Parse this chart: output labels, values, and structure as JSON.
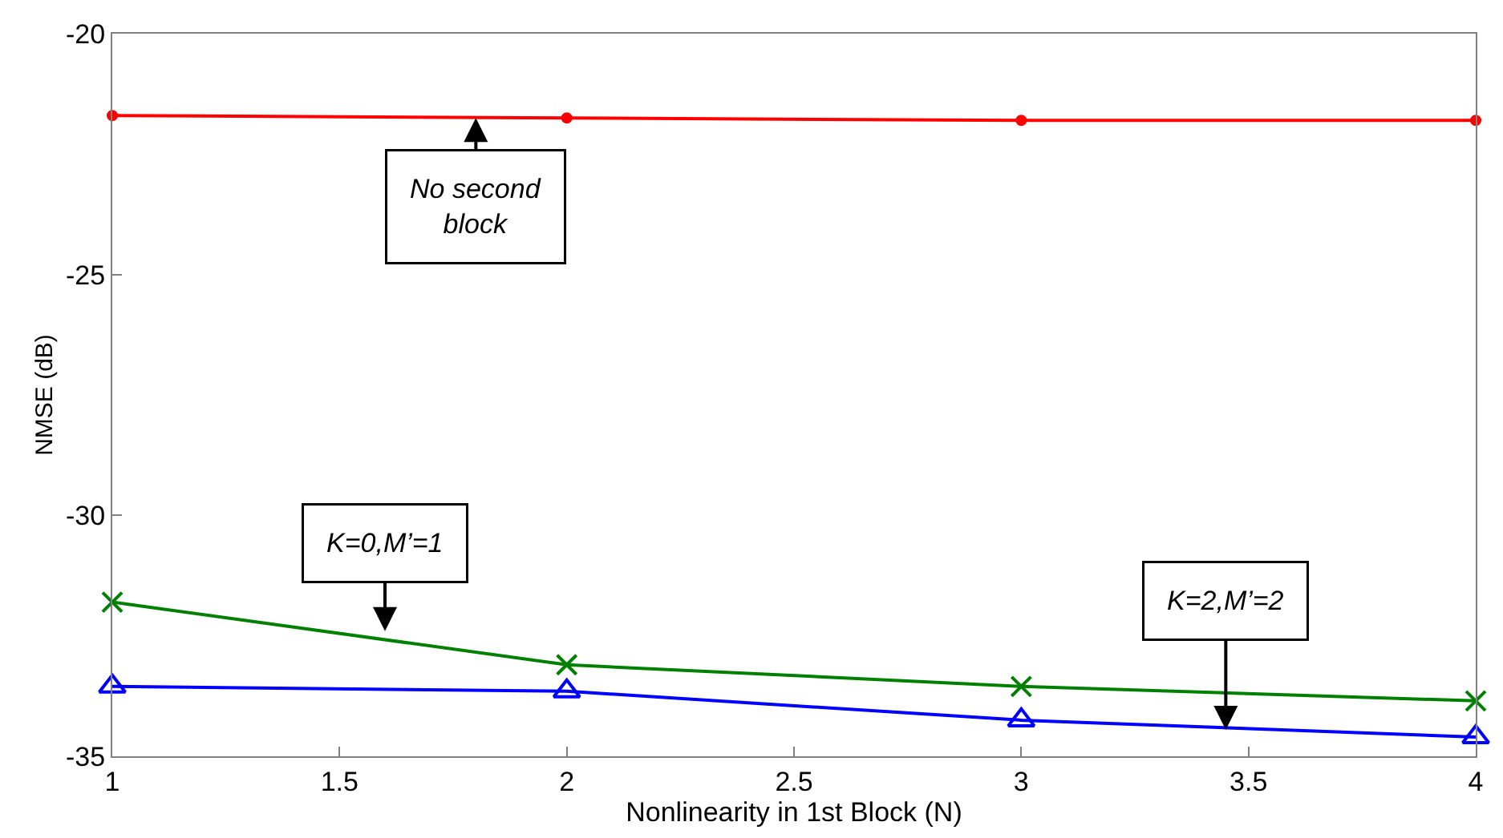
{
  "chart_data": {
    "type": "line",
    "xlabel": "Nonlinearity in 1st Block (N)",
    "ylabel": "NMSE (dB)",
    "x": [
      1,
      2,
      3,
      4
    ],
    "series": [
      {
        "color": "#ff0000",
        "marker": "circle",
        "values": [
          -21.7,
          -21.75,
          -21.8,
          -21.8
        ]
      },
      {
        "color": "#008000",
        "marker": "cross",
        "values": [
          -31.8,
          -33.1,
          -33.55,
          -33.85
        ]
      },
      {
        "color": "#0000ff",
        "marker": "triangle",
        "values": [
          -33.55,
          -33.65,
          -34.25,
          -34.6
        ]
      }
    ],
    "xlim": [
      1,
      4
    ],
    "xticks": [
      1,
      1.5,
      2,
      2.5,
      3,
      3.5,
      4
    ],
    "ylim": [
      -35,
      -20
    ],
    "yticks": [
      -35,
      -30,
      -25,
      -20
    ],
    "annotations": [
      {
        "text": "No second\nblock",
        "x": 1.8,
        "y": -21.75
      },
      {
        "text": "K=0,M’=1",
        "x": 1.6,
        "y": -32.4
      },
      {
        "text": "K=2,M’=2",
        "x": 3.45,
        "y": -34.45
      }
    ]
  }
}
